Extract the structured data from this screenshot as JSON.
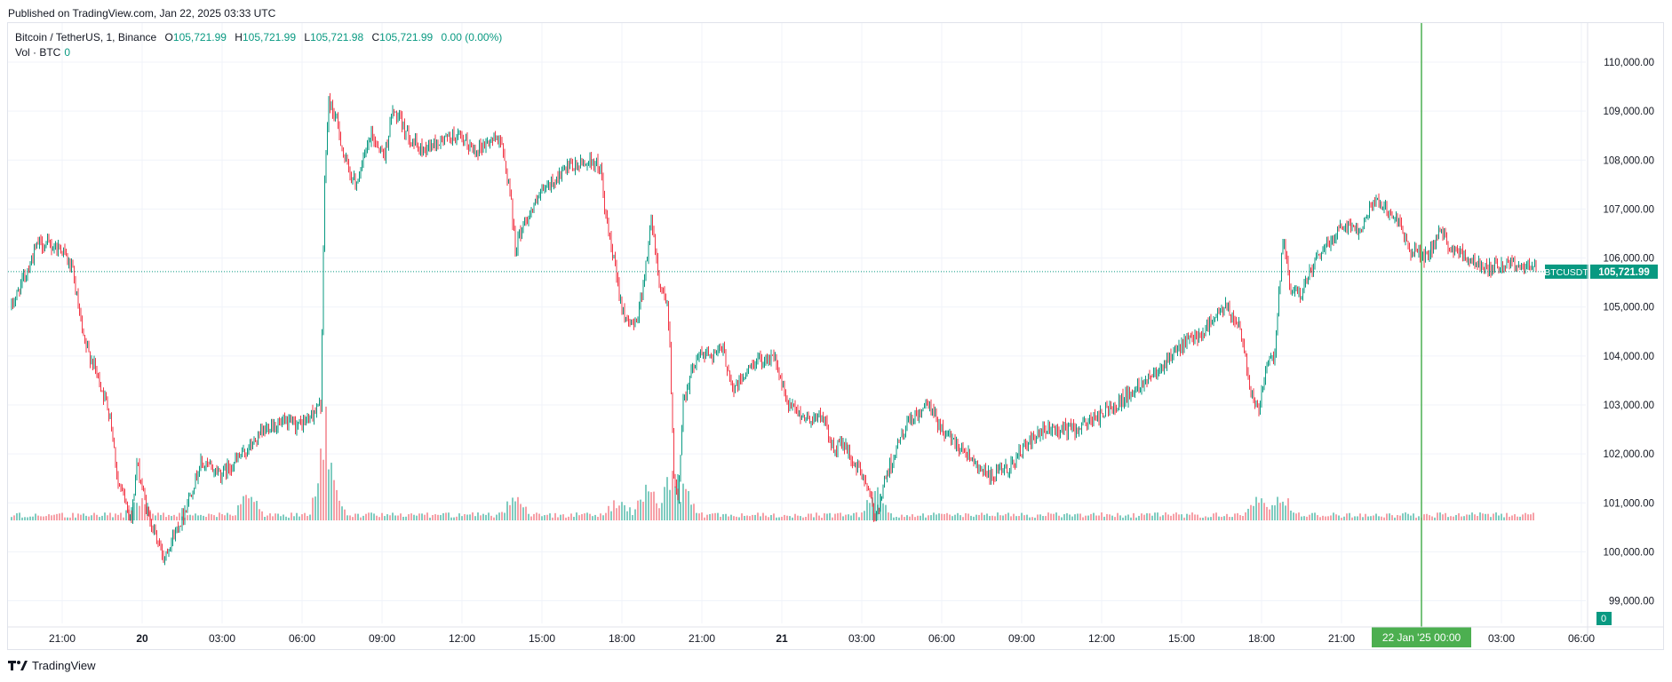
{
  "header": {
    "published": "Published on TradingView.com, Jan 22, 2025 03:33 UTC"
  },
  "legend": {
    "symbol": "Bitcoin / TetherUS, 1, Binance",
    "o_label": "O",
    "o": "105,721.99",
    "h_label": "H",
    "h": "105,721.99",
    "l_label": "L",
    "l": "105,721.98",
    "c_label": "C",
    "c": "105,721.99",
    "change": "0.00 (0.00%)",
    "vol_label": "Vol · BTC",
    "vol_value": "0"
  },
  "footer": {
    "brand": "TradingView",
    "logo": "tradingview-logo-icon"
  },
  "colors": {
    "up": "#089981",
    "down": "#f23645",
    "accent_line": "#4caf50",
    "grid": "#f0f3fa"
  },
  "chart_data": {
    "type": "candlestick",
    "title": "Bitcoin / TetherUS, 1, Binance",
    "ylim": [
      98600,
      110600
    ],
    "yticks": [
      "110,000.00",
      "109,000.00",
      "108,000.00",
      "107,000.00",
      "106,000.00",
      "105,000.00",
      "104,000.00",
      "103,000.00",
      "102,000.00",
      "101,000.00",
      "100,000.00",
      "99,000.00"
    ],
    "ytick_values": [
      110000,
      109000,
      108000,
      107000,
      106000,
      105000,
      104000,
      103000,
      102000,
      101000,
      100000,
      99000
    ],
    "xticks": [
      "21:00",
      "20",
      "03:00",
      "06:00",
      "09:00",
      "12:00",
      "15:00",
      "18:00",
      "21:00",
      "21",
      "03:00",
      "06:00",
      "09:00",
      "12:00",
      "15:00",
      "18:00",
      "21:00",
      "00:00",
      "03:00",
      "06:00"
    ],
    "xtick_hours": [
      0,
      3,
      6,
      9,
      12,
      15,
      18,
      21,
      24,
      27,
      30,
      33,
      36,
      39,
      42,
      45,
      48,
      51,
      54,
      57
    ],
    "price_path": [
      [
        -1.9,
        105000
      ],
      [
        -0.9,
        106300
      ],
      [
        0,
        106200
      ],
      [
        0.4,
        105700
      ],
      [
        0.8,
        104300
      ],
      [
        1.2,
        103800
      ],
      [
        1.8,
        102800
      ],
      [
        2.1,
        101400
      ],
      [
        2.6,
        100700
      ],
      [
        2.8,
        101800
      ],
      [
        3.2,
        100800
      ],
      [
        3.8,
        99900
      ],
      [
        4.5,
        100700
      ],
      [
        5.2,
        101800
      ],
      [
        6,
        101600
      ],
      [
        6.8,
        102000
      ],
      [
        7.8,
        102600
      ],
      [
        9,
        102600
      ],
      [
        9.7,
        103000
      ],
      [
        9.85,
        107600
      ],
      [
        10.0,
        109200
      ],
      [
        10.3,
        108800
      ],
      [
        10.6,
        108000
      ],
      [
        11,
        107500
      ],
      [
        11.6,
        108500
      ],
      [
        12.1,
        108100
      ],
      [
        12.4,
        109000
      ],
      [
        13.4,
        108200
      ],
      [
        14.7,
        108500
      ],
      [
        15.5,
        108200
      ],
      [
        16.4,
        108500
      ],
      [
        16.8,
        107400
      ],
      [
        17.0,
        106200
      ],
      [
        17.3,
        106700
      ],
      [
        18.1,
        107400
      ],
      [
        18.9,
        107800
      ],
      [
        19.9,
        108000
      ],
      [
        20.2,
        107800
      ],
      [
        20.4,
        106800
      ],
      [
        20.9,
        105300
      ],
      [
        21.2,
        104600
      ],
      [
        21.6,
        104800
      ],
      [
        22.0,
        106200
      ],
      [
        22.1,
        106900
      ],
      [
        22.4,
        105500
      ],
      [
        22.7,
        105100
      ],
      [
        22.8,
        104100
      ],
      [
        22.95,
        101500
      ],
      [
        23.1,
        101000
      ],
      [
        23.3,
        103100
      ],
      [
        23.8,
        104000
      ],
      [
        24.8,
        104100
      ],
      [
        25.2,
        103300
      ],
      [
        26.0,
        103900
      ],
      [
        26.7,
        104000
      ],
      [
        27.2,
        103000
      ],
      [
        28.0,
        102700
      ],
      [
        28.5,
        102800
      ],
      [
        29.0,
        102000
      ],
      [
        29.2,
        102300
      ],
      [
        29.7,
        101800
      ],
      [
        30.1,
        101500
      ],
      [
        30.5,
        100700
      ],
      [
        31.0,
        101700
      ],
      [
        31.7,
        102600
      ],
      [
        32.5,
        103000
      ],
      [
        33.0,
        102500
      ],
      [
        34.0,
        102000
      ],
      [
        34.8,
        101500
      ],
      [
        35.5,
        101700
      ],
      [
        36.2,
        102200
      ],
      [
        37.0,
        102500
      ],
      [
        38.0,
        102500
      ],
      [
        39.0,
        102800
      ],
      [
        40.0,
        103200
      ],
      [
        41.0,
        103700
      ],
      [
        42.0,
        104200
      ],
      [
        42.8,
        104500
      ],
      [
        43.6,
        105000
      ],
      [
        44.2,
        104600
      ],
      [
        44.6,
        103300
      ],
      [
        44.9,
        102900
      ],
      [
        45.2,
        103800
      ],
      [
        45.5,
        104000
      ],
      [
        45.8,
        106400
      ],
      [
        46.1,
        105300
      ],
      [
        46.5,
        105300
      ],
      [
        47.0,
        105900
      ],
      [
        47.5,
        106300
      ],
      [
        48.0,
        106700
      ],
      [
        48.7,
        106600
      ],
      [
        49.2,
        107200
      ],
      [
        50.1,
        106800
      ],
      [
        50.5,
        106200
      ],
      [
        51.2,
        106000
      ],
      [
        51.7,
        106500
      ],
      [
        52.0,
        106300
      ],
      [
        52.4,
        106100
      ],
      [
        52.8,
        106000
      ],
      [
        53.3,
        105800
      ],
      [
        54.4,
        105900
      ],
      [
        55.1,
        105800
      ],
      [
        55.3,
        105722
      ]
    ],
    "volume_spikes": [
      {
        "h": 2.9,
        "v": 2.1
      },
      {
        "h": 7.0,
        "v": 2.6
      },
      {
        "h": 9.9,
        "v": 10.5
      },
      {
        "h": 10.1,
        "v": 3.7
      },
      {
        "h": 17.0,
        "v": 2.3
      },
      {
        "h": 20.9,
        "v": 2.1
      },
      {
        "h": 22.0,
        "v": 3.6
      },
      {
        "h": 22.9,
        "v": 6.3
      },
      {
        "h": 23.3,
        "v": 3.5
      },
      {
        "h": 30.5,
        "v": 3.5
      },
      {
        "h": 44.9,
        "v": 2.2
      },
      {
        "h": 45.8,
        "v": 2.5
      }
    ],
    "current_price": 105721.99,
    "price_label_symbol": "BTCUSDT",
    "price_label_value": "105,721.99",
    "volume_current": "0",
    "crosshair_label": "22 Jan '25   00:00",
    "crosshair_hour": 51
  }
}
